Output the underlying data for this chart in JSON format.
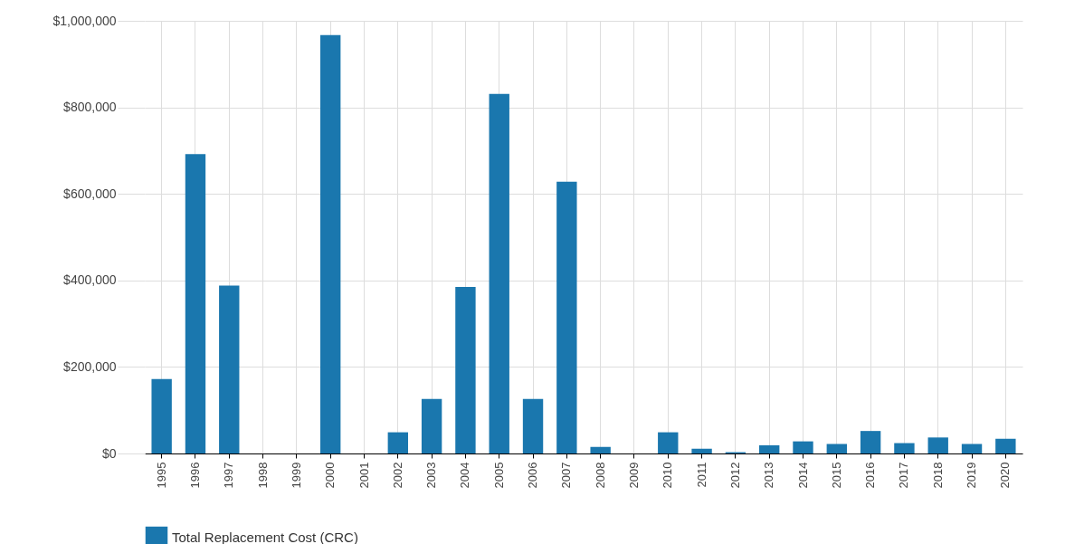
{
  "chart_data": {
    "type": "bar",
    "categories": [
      "1995",
      "1996",
      "1997",
      "1998",
      "1999",
      "2000",
      "2001",
      "2002",
      "2003",
      "2004",
      "2005",
      "2006",
      "2007",
      "2008",
      "2009",
      "2010",
      "2011",
      "2012",
      "2013",
      "2014",
      "2015",
      "2016",
      "2017",
      "2018",
      "2019",
      "2020"
    ],
    "series": [
      {
        "name": "Total Replacement Cost (CRC)",
        "color": "#1a77ae",
        "values": [
          172000,
          692000,
          388000,
          0,
          0,
          967000,
          0,
          49000,
          126000,
          385000,
          831000,
          126000,
          628000,
          15000,
          0,
          49000,
          11000,
          3000,
          19000,
          28000,
          22000,
          52000,
          24000,
          37000,
          22000,
          34000
        ]
      }
    ],
    "ylim": [
      0,
      1000000
    ],
    "yticks": [
      {
        "value": 0,
        "label": "$0"
      },
      {
        "value": 200000,
        "label": "$200,000"
      },
      {
        "value": 400000,
        "label": "$400,000"
      },
      {
        "value": 600000,
        "label": "$600,000"
      },
      {
        "value": 800000,
        "label": "$800,000"
      },
      {
        "value": 1000000,
        "label": "$1,000,000"
      }
    ],
    "grid": true,
    "legend": "bottom left"
  }
}
